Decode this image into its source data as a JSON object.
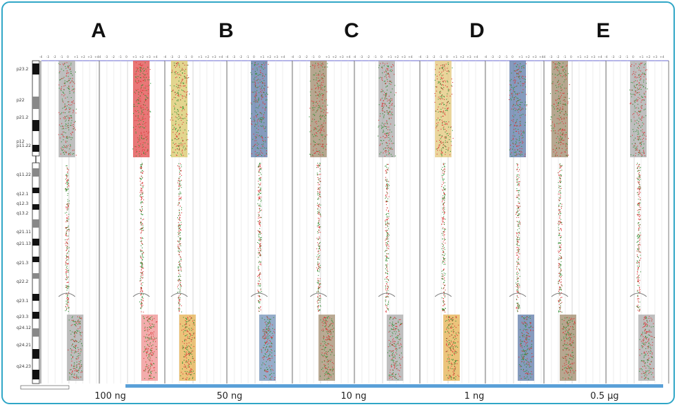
{
  "panels": [
    {
      "label": "A",
      "amount": "100 ng",
      "colors": {
        "left": "#a9a9a9",
        "right": "#e24a4a",
        "gain_left": "#a9a9a9",
        "gain_right": "#ef9090"
      }
    },
    {
      "label": "B",
      "amount": "50 ng",
      "colors": {
        "left": "#d9c86a",
        "right": "#5e79a8",
        "gain_left": "#e6b04f",
        "gain_right": "#7392b8"
      }
    },
    {
      "label": "C",
      "amount": "10 ng",
      "colors": {
        "left": "#9f8a6b",
        "right": "#a9a9a9",
        "gain_left": "#a38d70",
        "gain_right": "#a9a9a9"
      }
    },
    {
      "label": "D",
      "amount": "1 ng",
      "colors": {
        "left": "#e3c779",
        "right": "#5e79a8",
        "gain_left": "#e6b04f",
        "gain_right": "#5e79a8"
      }
    },
    {
      "label": "E",
      "amount": "0.5 μg",
      "colors": {
        "left": "#9f8a6b",
        "right": "#a9a9a9",
        "gain_left": "#9f8a6b",
        "gain_right": "#a9a9a9"
      }
    }
  ],
  "ideogram_bands": [
    "p23.2",
    "p22",
    "p21.2",
    "p12\np11.22",
    "q11.22",
    "q12.1",
    "q12.3",
    "q13.2",
    "q21.11",
    "q21.13",
    "q21.3",
    "q22.2",
    "q23.1",
    "q23.3",
    "q24.12",
    "q24.21",
    "q24.23"
  ],
  "axis_ticks": [
    "-4",
    "-3",
    "-2",
    "-1",
    "0",
    "+1",
    "+2",
    "+3",
    "+4"
  ],
  "colors": {
    "frame": "#2fa6c6",
    "green_points": "#2e8b2e",
    "red_points": "#d93030",
    "baseline_bar": "#5aa0d8"
  }
}
